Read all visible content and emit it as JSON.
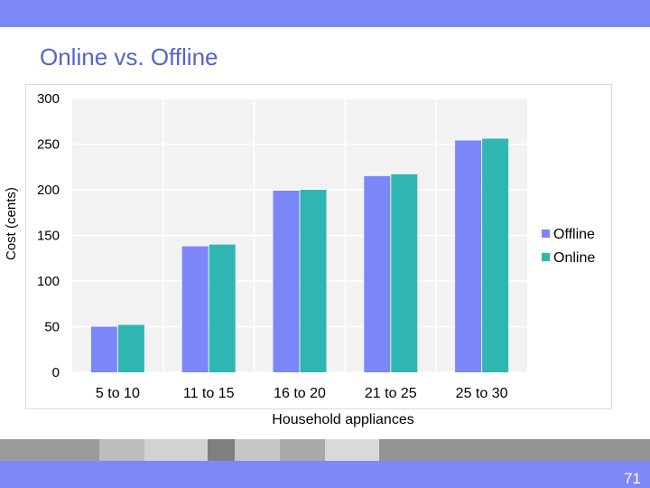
{
  "slide": {
    "page_number": "71"
  },
  "colors": {
    "header_bar": "#7b88f5",
    "title": "#5763c9",
    "offline": "#7b86f8",
    "online": "#2fb6b2",
    "plot_background": "#f2f2f2",
    "gridline": "#ffffff"
  },
  "chart_data": {
    "type": "bar",
    "title": "Online vs. Offline",
    "xlabel": "Household appliances",
    "ylabel": "Cost (cents)",
    "categories": [
      "5 to 10",
      "11 to 15",
      "16 to 20",
      "21 to 25",
      "25 to 30"
    ],
    "series": [
      {
        "name": "Offline",
        "color": "#7b86f8",
        "values": [
          50,
          138,
          199,
          215,
          254
        ]
      },
      {
        "name": "Online",
        "color": "#2fb6b2",
        "values": [
          52,
          140,
          200,
          217,
          256
        ]
      }
    ],
    "ylim": [
      0,
      300
    ],
    "yticks": [
      "0",
      "50",
      "100",
      "150",
      "200",
      "250",
      "300"
    ],
    "grid": true,
    "legend": "right"
  }
}
